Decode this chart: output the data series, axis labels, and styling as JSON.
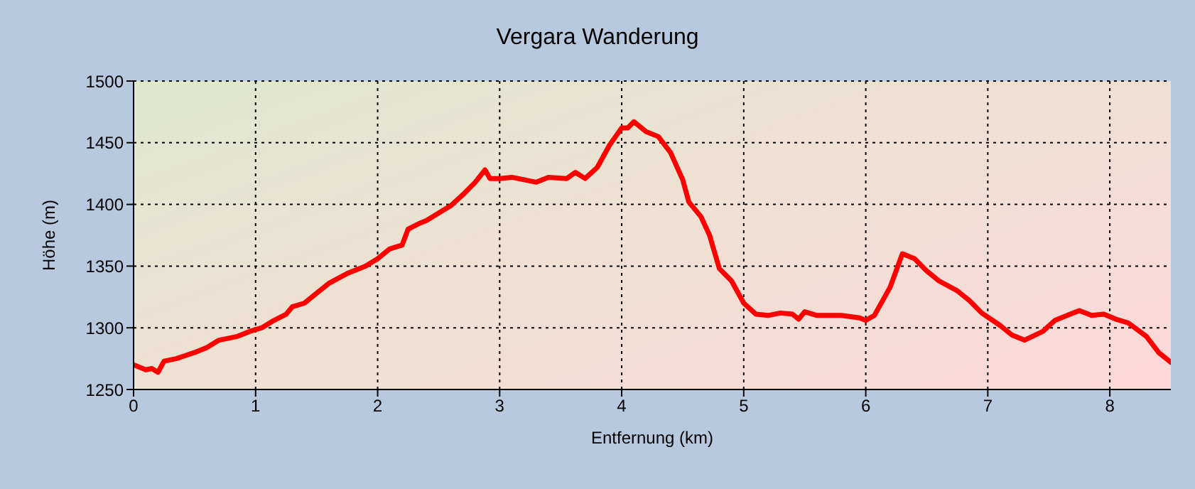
{
  "chart_data": {
    "type": "line",
    "title": "Vergara Wanderung",
    "xlabel": "Entfernung (km)",
    "ylabel": "Höhe (m)",
    "x": [
      0,
      0.1,
      0.15,
      0.2,
      0.25,
      0.35,
      0.5,
      0.6,
      0.7,
      0.85,
      0.95,
      1.05,
      1.15,
      1.25,
      1.3,
      1.4,
      1.5,
      1.6,
      1.75,
      1.9,
      2.0,
      2.1,
      2.2,
      2.25,
      2.35,
      2.4,
      2.5,
      2.6,
      2.7,
      2.8,
      2.88,
      2.92,
      3.0,
      3.1,
      3.2,
      3.3,
      3.4,
      3.55,
      3.62,
      3.7,
      3.8,
      3.9,
      4.0,
      4.05,
      4.1,
      4.2,
      4.3,
      4.4,
      4.5,
      4.55,
      4.65,
      4.72,
      4.8,
      4.9,
      5.0,
      5.1,
      5.2,
      5.3,
      5.4,
      5.45,
      5.5,
      5.6,
      5.8,
      5.95,
      6.0,
      6.07,
      6.2,
      6.3,
      6.4,
      6.5,
      6.6,
      6.75,
      6.85,
      6.95,
      7.1,
      7.2,
      7.3,
      7.45,
      7.55,
      7.65,
      7.75,
      7.85,
      7.95,
      8.05,
      8.15,
      8.3,
      8.4,
      8.5
    ],
    "series": [
      {
        "color": "#ff0000",
        "values": [
          1270,
          1266,
          1267,
          1264,
          1273,
          1275,
          1280,
          1284,
          1290,
          1293,
          1297,
          1300,
          1306,
          1311,
          1317,
          1320,
          1328,
          1336,
          1344,
          1350,
          1356,
          1364,
          1367,
          1380,
          1385,
          1387,
          1393,
          1399,
          1408,
          1418,
          1428,
          1421,
          1421,
          1422,
          1420,
          1418,
          1422,
          1421,
          1426,
          1421,
          1430,
          1448,
          1462,
          1462,
          1467,
          1459,
          1455,
          1442,
          1420,
          1402,
          1390,
          1375,
          1348,
          1338,
          1320,
          1311,
          1310,
          1312,
          1311,
          1307,
          1313,
          1310,
          1310,
          1308,
          1306,
          1310,
          1333,
          1360,
          1356,
          1346,
          1338,
          1330,
          1322,
          1312,
          1302,
          1294,
          1290,
          1297,
          1306,
          1310,
          1314,
          1310,
          1311,
          1307,
          1304,
          1293,
          1280,
          1272
        ]
      }
    ],
    "xlim": [
      0,
      8.5
    ],
    "xticks": [
      0,
      1,
      2,
      3,
      4,
      5,
      6,
      7,
      8
    ],
    "ylim": [
      1250,
      1500
    ],
    "yticks": [
      1250,
      1300,
      1350,
      1400,
      1450,
      1500
    ],
    "grid": true,
    "marker": "none",
    "line_style": "solid"
  }
}
